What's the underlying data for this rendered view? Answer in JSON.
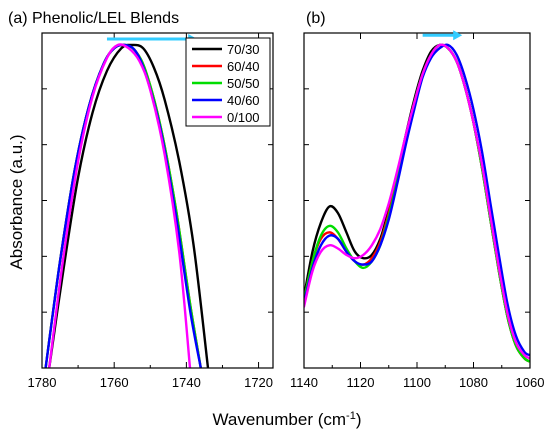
{
  "chart_data": [
    {
      "type": "line",
      "title": "(a) Phenolic/LEL Blends",
      "xlabel": "Wavenumber (cm-1)",
      "ylabel": "Absorbance (a.u.)",
      "xlim": [
        1780,
        1716
      ],
      "x_reversed": true,
      "ylim": [
        0,
        1
      ],
      "y_ticks_labeled": false,
      "xticks": [
        1780,
        1760,
        1740,
        1720
      ],
      "arrow_color": "#33ccff",
      "legend": {
        "placement": "top-right"
      },
      "series": [
        {
          "name": "70/30",
          "color": "#000000",
          "x": [
            1778,
            1774,
            1770,
            1766,
            1762,
            1758,
            1755,
            1752,
            1749,
            1746,
            1742,
            1738,
            1734
          ],
          "y": [
            0.0,
            0.31,
            0.59,
            0.79,
            0.92,
            0.99,
            1.0,
            0.99,
            0.93,
            0.83,
            0.64,
            0.38,
            0.0
          ]
        },
        {
          "name": "60/40",
          "color": "#ff0000",
          "x": [
            1779,
            1775,
            1771,
            1767,
            1763,
            1760,
            1757,
            1754,
            1751,
            1747,
            1743,
            1739,
            1736
          ],
          "y": [
            0.0,
            0.33,
            0.61,
            0.81,
            0.94,
            0.99,
            1.0,
            0.98,
            0.91,
            0.74,
            0.5,
            0.2,
            0.0
          ]
        },
        {
          "name": "50/50",
          "color": "#00dd00",
          "x": [
            1779,
            1775,
            1771,
            1767,
            1763,
            1760,
            1757,
            1754,
            1751,
            1747,
            1743,
            1739,
            1736
          ],
          "y": [
            0.0,
            0.33,
            0.61,
            0.81,
            0.94,
            0.99,
            1.0,
            0.98,
            0.91,
            0.74,
            0.5,
            0.2,
            0.0
          ]
        },
        {
          "name": "40/60",
          "color": "#0000ff",
          "x": [
            1779,
            1775,
            1771,
            1767,
            1763,
            1760,
            1757,
            1754,
            1751,
            1747,
            1743,
            1739,
            1736
          ],
          "y": [
            0.0,
            0.33,
            0.61,
            0.81,
            0.94,
            0.99,
            1.0,
            0.98,
            0.9,
            0.73,
            0.48,
            0.18,
            0.0
          ]
        },
        {
          "name": "0/100",
          "color": "#ff00ff",
          "x": [
            1778,
            1774,
            1770,
            1766,
            1762,
            1759,
            1756,
            1753,
            1750,
            1746,
            1742,
            1739
          ],
          "y": [
            0.0,
            0.35,
            0.64,
            0.84,
            0.96,
            1.0,
            0.99,
            0.95,
            0.86,
            0.66,
            0.36,
            0.0
          ]
        }
      ]
    },
    {
      "type": "line",
      "title": "(b)",
      "xlabel": "Wavenumber (cm-1)",
      "xlim": [
        1140,
        1060
      ],
      "x_reversed": true,
      "ylim": [
        0,
        1
      ],
      "y_ticks_labeled": false,
      "xticks": [
        1140,
        1120,
        1100,
        1080,
        1060
      ],
      "arrow_color": "#33ccff",
      "series": [
        {
          "name": "70/30",
          "color": "#000000",
          "x": [
            1140,
            1137,
            1134,
            1131,
            1128,
            1125,
            1122,
            1119,
            1116,
            1113,
            1110,
            1107,
            1104,
            1101,
            1098,
            1095,
            1092,
            1089,
            1086,
            1083,
            1080,
            1077,
            1074,
            1071,
            1068,
            1065,
            1062,
            1060
          ],
          "y": [
            0.22,
            0.36,
            0.45,
            0.5,
            0.48,
            0.42,
            0.36,
            0.34,
            0.35,
            0.4,
            0.49,
            0.6,
            0.72,
            0.83,
            0.92,
            0.98,
            1.0,
            0.99,
            0.95,
            0.87,
            0.76,
            0.62,
            0.46,
            0.3,
            0.16,
            0.07,
            0.03,
            0.02
          ]
        },
        {
          "name": "60/40",
          "color": "#ff0000",
          "x": [
            1140,
            1137,
            1134,
            1131,
            1128,
            1125,
            1122,
            1119,
            1116,
            1113,
            1110,
            1107,
            1104,
            1101,
            1098,
            1095,
            1092,
            1089,
            1086,
            1083,
            1080,
            1077,
            1074,
            1071,
            1068,
            1065,
            1062,
            1060
          ],
          "y": [
            0.21,
            0.33,
            0.4,
            0.42,
            0.4,
            0.36,
            0.33,
            0.32,
            0.34,
            0.39,
            0.48,
            0.59,
            0.71,
            0.82,
            0.91,
            0.97,
            1.0,
            0.99,
            0.95,
            0.87,
            0.76,
            0.62,
            0.46,
            0.3,
            0.16,
            0.07,
            0.03,
            0.02
          ]
        },
        {
          "name": "50/50",
          "color": "#00dd00",
          "x": [
            1140,
            1137,
            1134,
            1131,
            1128,
            1125,
            1122,
            1119,
            1116,
            1113,
            1110,
            1107,
            1104,
            1101,
            1098,
            1095,
            1092,
            1089,
            1086,
            1083,
            1080,
            1077,
            1074,
            1071,
            1068,
            1065,
            1062,
            1060
          ],
          "y": [
            0.21,
            0.33,
            0.41,
            0.44,
            0.42,
            0.37,
            0.33,
            0.31,
            0.33,
            0.38,
            0.47,
            0.58,
            0.7,
            0.82,
            0.91,
            0.97,
            1.0,
            0.99,
            0.95,
            0.87,
            0.76,
            0.62,
            0.46,
            0.3,
            0.16,
            0.07,
            0.03,
            0.02
          ]
        },
        {
          "name": "40/60",
          "color": "#0000ff",
          "x": [
            1140,
            1137,
            1134,
            1131,
            1128,
            1125,
            1122,
            1119,
            1116,
            1113,
            1110,
            1107,
            1104,
            1101,
            1098,
            1095,
            1092,
            1089,
            1086,
            1083,
            1080,
            1077,
            1074,
            1071,
            1068,
            1065,
            1062,
            1060
          ],
          "y": [
            0.2,
            0.31,
            0.38,
            0.41,
            0.4,
            0.36,
            0.33,
            0.32,
            0.33,
            0.38,
            0.46,
            0.57,
            0.69,
            0.8,
            0.9,
            0.96,
            0.99,
            1.0,
            0.97,
            0.9,
            0.8,
            0.67,
            0.51,
            0.35,
            0.2,
            0.1,
            0.05,
            0.04
          ]
        },
        {
          "name": "0/100",
          "color": "#ff00ff",
          "x": [
            1140,
            1137,
            1134,
            1131,
            1128,
            1125,
            1122,
            1119,
            1116,
            1113,
            1110,
            1107,
            1104,
            1101,
            1098,
            1095,
            1092,
            1089,
            1086,
            1083,
            1080,
            1077,
            1074,
            1071,
            1068,
            1065,
            1062,
            1060
          ],
          "y": [
            0.19,
            0.3,
            0.36,
            0.38,
            0.37,
            0.35,
            0.34,
            0.35,
            0.38,
            0.43,
            0.51,
            0.61,
            0.72,
            0.82,
            0.91,
            0.97,
            1.0,
            0.99,
            0.95,
            0.87,
            0.76,
            0.63,
            0.47,
            0.31,
            0.17,
            0.08,
            0.04,
            0.03
          ]
        }
      ]
    }
  ]
}
